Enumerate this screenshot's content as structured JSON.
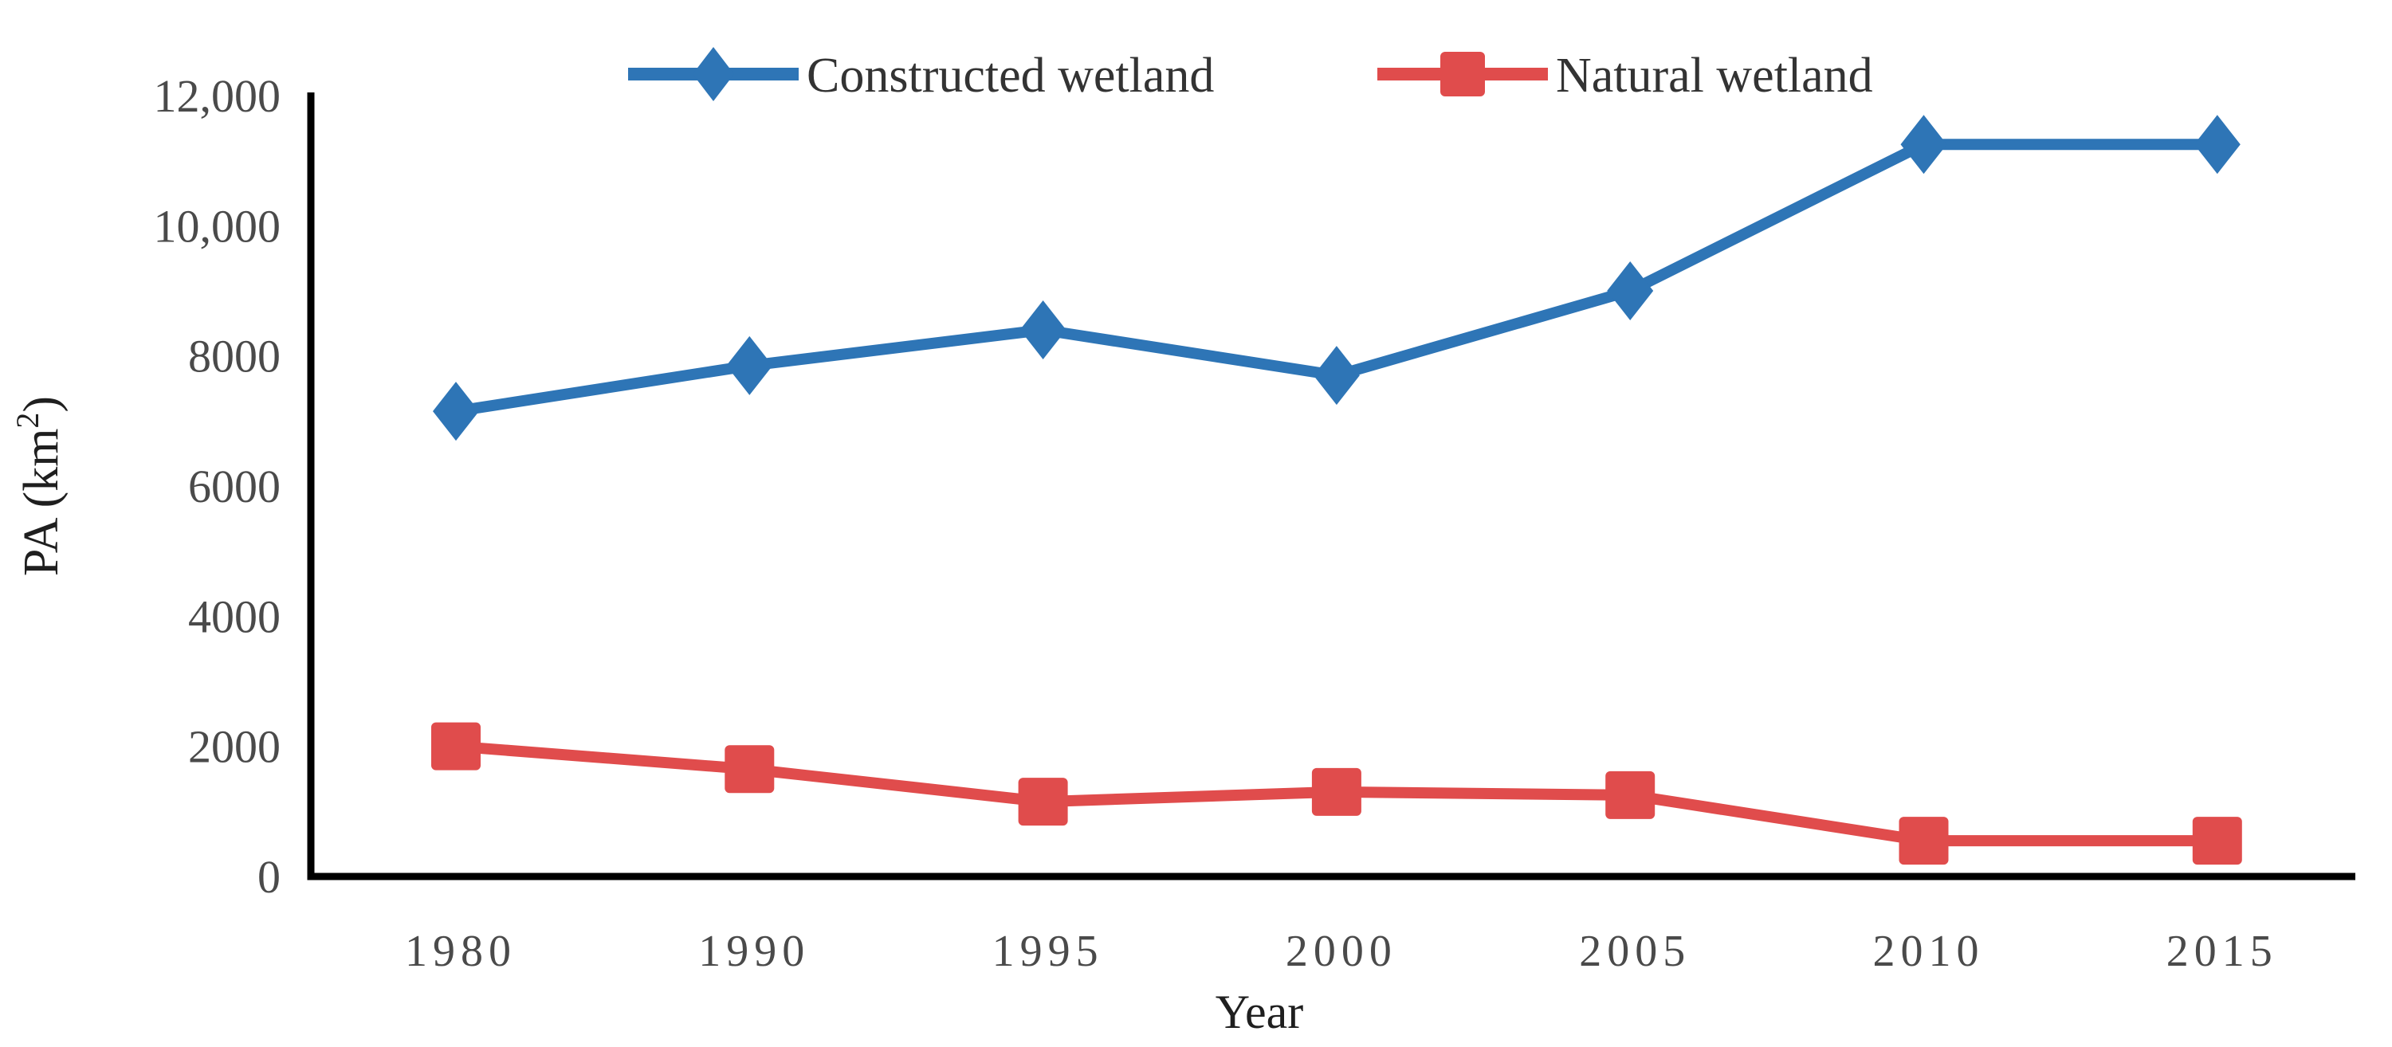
{
  "figure": {
    "background": "#ffffff",
    "axis_color": "#000000",
    "tick_label_color": "#4a4a4a",
    "axis_title_color": "#1f1f1f",
    "legend_text_color": "#333333"
  },
  "legend": [
    {
      "label": "Constructed wetland",
      "marker": "diamond",
      "color": "#2E75B6"
    },
    {
      "label": "Natural wetland",
      "marker": "square",
      "color": "#E04C4C"
    }
  ],
  "chart_data": {
    "type": "line",
    "title": "",
    "xlabel": "Year",
    "ylabel": "PA (km2)",
    "ylabel_parts": {
      "prefix": "PA (km",
      "superscript": "2",
      "suffix": ")"
    },
    "categories": [
      "1980",
      "1990",
      "1995",
      "2000",
      "2005",
      "2010",
      "2015"
    ],
    "series": [
      {
        "name": "Constructed wetland",
        "color": "#2E75B6",
        "marker": "diamond",
        "values": [
          7150,
          7850,
          8400,
          7700,
          9000,
          11250,
          11250
        ]
      },
      {
        "name": "Natural wetland",
        "color": "#E04C4C",
        "marker": "square",
        "values": [
          2000,
          1650,
          1150,
          1300,
          1250,
          550,
          550
        ]
      }
    ],
    "ylim": [
      0,
      12000
    ],
    "ytick_interval": 2000,
    "ytick_labels": [
      "0",
      "2000",
      "4000",
      "6000",
      "8000",
      "10,000",
      "12,000"
    ],
    "grid": false,
    "legend_position": "top-center"
  }
}
